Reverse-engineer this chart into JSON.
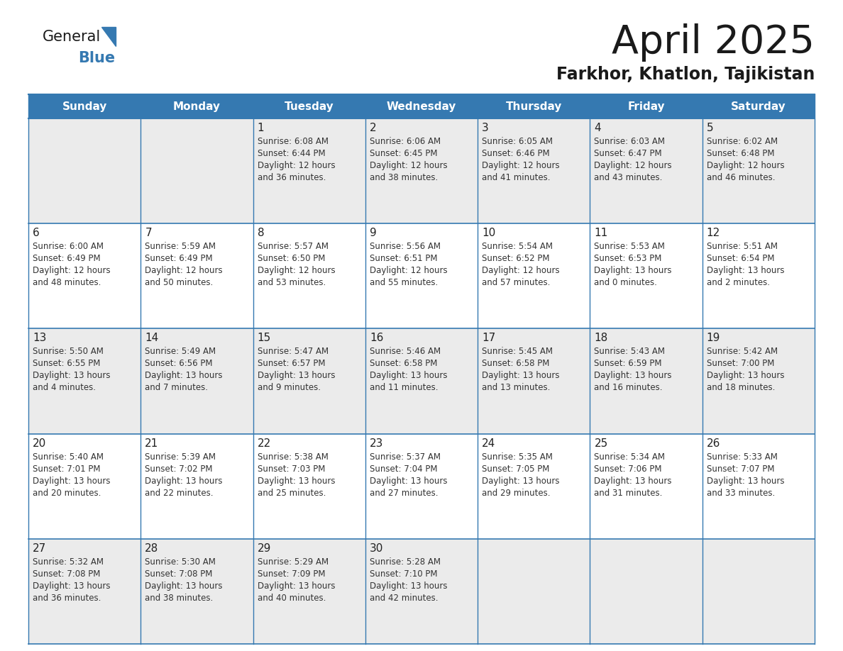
{
  "title": "April 2025",
  "subtitle": "Farkhor, Khatlon, Tajikistan",
  "header_color": "#3579b1",
  "header_text_color": "#ffffff",
  "day_names": [
    "Sunday",
    "Monday",
    "Tuesday",
    "Wednesday",
    "Thursday",
    "Friday",
    "Saturday"
  ],
  "bg_color": "#ffffff",
  "cell_bg_light": "#ebebeb",
  "cell_bg_white": "#ffffff",
  "border_color": "#3579b1",
  "grid_color": "#bbbbbb",
  "text_color": "#333333",
  "day_num_color": "#222222",
  "logo_general_color": "#1a1a1a",
  "logo_blue_color": "#3579b1",
  "title_color": "#1a1a1a",
  "calendar_data": [
    [
      {
        "day": "",
        "sunrise": "",
        "sunset": "",
        "daylight_h": "",
        "daylight_m": ""
      },
      {
        "day": "",
        "sunrise": "",
        "sunset": "",
        "daylight_h": "",
        "daylight_m": ""
      },
      {
        "day": "1",
        "sunrise": "6:08 AM",
        "sunset": "6:44 PM",
        "daylight_h": "12 hours",
        "daylight_m": "36 minutes."
      },
      {
        "day": "2",
        "sunrise": "6:06 AM",
        "sunset": "6:45 PM",
        "daylight_h": "12 hours",
        "daylight_m": "38 minutes."
      },
      {
        "day": "3",
        "sunrise": "6:05 AM",
        "sunset": "6:46 PM",
        "daylight_h": "12 hours",
        "daylight_m": "41 minutes."
      },
      {
        "day": "4",
        "sunrise": "6:03 AM",
        "sunset": "6:47 PM",
        "daylight_h": "12 hours",
        "daylight_m": "43 minutes."
      },
      {
        "day": "5",
        "sunrise": "6:02 AM",
        "sunset": "6:48 PM",
        "daylight_h": "12 hours",
        "daylight_m": "46 minutes."
      }
    ],
    [
      {
        "day": "6",
        "sunrise": "6:00 AM",
        "sunset": "6:49 PM",
        "daylight_h": "12 hours",
        "daylight_m": "48 minutes."
      },
      {
        "day": "7",
        "sunrise": "5:59 AM",
        "sunset": "6:49 PM",
        "daylight_h": "12 hours",
        "daylight_m": "50 minutes."
      },
      {
        "day": "8",
        "sunrise": "5:57 AM",
        "sunset": "6:50 PM",
        "daylight_h": "12 hours",
        "daylight_m": "53 minutes."
      },
      {
        "day": "9",
        "sunrise": "5:56 AM",
        "sunset": "6:51 PM",
        "daylight_h": "12 hours",
        "daylight_m": "55 minutes."
      },
      {
        "day": "10",
        "sunrise": "5:54 AM",
        "sunset": "6:52 PM",
        "daylight_h": "12 hours",
        "daylight_m": "57 minutes."
      },
      {
        "day": "11",
        "sunrise": "5:53 AM",
        "sunset": "6:53 PM",
        "daylight_h": "13 hours",
        "daylight_m": "0 minutes."
      },
      {
        "day": "12",
        "sunrise": "5:51 AM",
        "sunset": "6:54 PM",
        "daylight_h": "13 hours",
        "daylight_m": "2 minutes."
      }
    ],
    [
      {
        "day": "13",
        "sunrise": "5:50 AM",
        "sunset": "6:55 PM",
        "daylight_h": "13 hours",
        "daylight_m": "4 minutes."
      },
      {
        "day": "14",
        "sunrise": "5:49 AM",
        "sunset": "6:56 PM",
        "daylight_h": "13 hours",
        "daylight_m": "7 minutes."
      },
      {
        "day": "15",
        "sunrise": "5:47 AM",
        "sunset": "6:57 PM",
        "daylight_h": "13 hours",
        "daylight_m": "9 minutes."
      },
      {
        "day": "16",
        "sunrise": "5:46 AM",
        "sunset": "6:58 PM",
        "daylight_h": "13 hours",
        "daylight_m": "11 minutes."
      },
      {
        "day": "17",
        "sunrise": "5:45 AM",
        "sunset": "6:58 PM",
        "daylight_h": "13 hours",
        "daylight_m": "13 minutes."
      },
      {
        "day": "18",
        "sunrise": "5:43 AM",
        "sunset": "6:59 PM",
        "daylight_h": "13 hours",
        "daylight_m": "16 minutes."
      },
      {
        "day": "19",
        "sunrise": "5:42 AM",
        "sunset": "7:00 PM",
        "daylight_h": "13 hours",
        "daylight_m": "18 minutes."
      }
    ],
    [
      {
        "day": "20",
        "sunrise": "5:40 AM",
        "sunset": "7:01 PM",
        "daylight_h": "13 hours",
        "daylight_m": "20 minutes."
      },
      {
        "day": "21",
        "sunrise": "5:39 AM",
        "sunset": "7:02 PM",
        "daylight_h": "13 hours",
        "daylight_m": "22 minutes."
      },
      {
        "day": "22",
        "sunrise": "5:38 AM",
        "sunset": "7:03 PM",
        "daylight_h": "13 hours",
        "daylight_m": "25 minutes."
      },
      {
        "day": "23",
        "sunrise": "5:37 AM",
        "sunset": "7:04 PM",
        "daylight_h": "13 hours",
        "daylight_m": "27 minutes."
      },
      {
        "day": "24",
        "sunrise": "5:35 AM",
        "sunset": "7:05 PM",
        "daylight_h": "13 hours",
        "daylight_m": "29 minutes."
      },
      {
        "day": "25",
        "sunrise": "5:34 AM",
        "sunset": "7:06 PM",
        "daylight_h": "13 hours",
        "daylight_m": "31 minutes."
      },
      {
        "day": "26",
        "sunrise": "5:33 AM",
        "sunset": "7:07 PM",
        "daylight_h": "13 hours",
        "daylight_m": "33 minutes."
      }
    ],
    [
      {
        "day": "27",
        "sunrise": "5:32 AM",
        "sunset": "7:08 PM",
        "daylight_h": "13 hours",
        "daylight_m": "36 minutes."
      },
      {
        "day": "28",
        "sunrise": "5:30 AM",
        "sunset": "7:08 PM",
        "daylight_h": "13 hours",
        "daylight_m": "38 minutes."
      },
      {
        "day": "29",
        "sunrise": "5:29 AM",
        "sunset": "7:09 PM",
        "daylight_h": "13 hours",
        "daylight_m": "40 minutes."
      },
      {
        "day": "30",
        "sunrise": "5:28 AM",
        "sunset": "7:10 PM",
        "daylight_h": "13 hours",
        "daylight_m": "42 minutes."
      },
      {
        "day": "",
        "sunrise": "",
        "sunset": "",
        "daylight_h": "",
        "daylight_m": ""
      },
      {
        "day": "",
        "sunrise": "",
        "sunset": "",
        "daylight_h": "",
        "daylight_m": ""
      },
      {
        "day": "",
        "sunrise": "",
        "sunset": "",
        "daylight_h": "",
        "daylight_m": ""
      }
    ]
  ]
}
